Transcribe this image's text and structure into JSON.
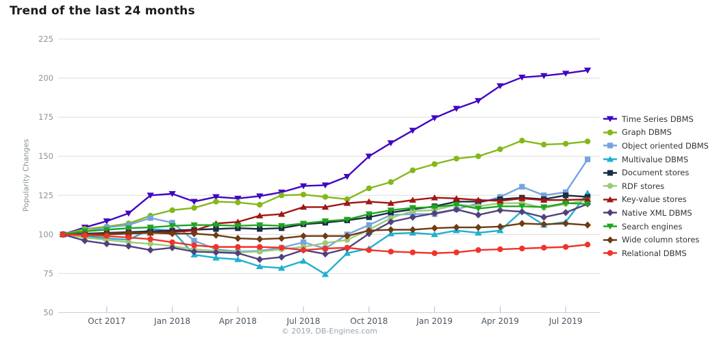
{
  "title": "Trend of the last 24 months",
  "footer": "© 2019, DB-Engines.com",
  "chart_data": {
    "type": "line",
    "title": "Trend of the last 24 months",
    "xlabel": "",
    "ylabel": "Popularity Changes",
    "ylim": [
      50,
      225
    ],
    "yticks": [
      50,
      75,
      100,
      125,
      150,
      175,
      200,
      225
    ],
    "x_count": 25,
    "xtick_labels": [
      "Oct 2017",
      "Jan 2018",
      "Apr 2018",
      "Jul 2018",
      "Oct 2018",
      "Jan 2019",
      "Apr 2019",
      "Jul 2019"
    ],
    "xtick_indices": [
      2,
      5,
      8,
      11,
      14,
      17,
      20,
      23
    ],
    "grid": "horizontal",
    "legend_position": "right",
    "axis_colors": {
      "grid": "#dddddd",
      "baseline": "#c7d0d9",
      "tick": "#b3bdc7",
      "xtick_label": "#4a5560",
      "ytick_label": "#8a949c"
    },
    "series": [
      {
        "name": "Time Series DBMS",
        "color": "#4106c2",
        "marker": "triangle-down",
        "values": [
          100,
          104.5,
          108.5,
          113.5,
          125,
          126,
          121,
          124,
          123,
          124.5,
          127,
          131,
          131.5,
          137,
          150,
          158.5,
          166.5,
          174.5,
          180.5,
          185.5,
          195,
          200.5,
          201.5,
          203,
          205
        ]
      },
      {
        "name": "Graph DBMS",
        "color": "#84b819",
        "marker": "circle",
        "values": [
          100,
          103.5,
          105,
          107,
          112,
          115.5,
          117,
          121,
          120.5,
          119,
          125,
          125.5,
          124,
          122.5,
          129.5,
          133.5,
          141,
          145,
          148.5,
          150,
          154.5,
          160,
          157.5,
          158,
          159.5
        ]
      },
      {
        "name": "Object oriented DBMS",
        "color": "#74a4df",
        "marker": "square",
        "values": [
          100,
          102,
          104.5,
          106,
          110.5,
          107.5,
          96,
          90.5,
          89,
          89.5,
          91.5,
          95,
          91,
          100,
          106,
          112.5,
          113,
          113,
          116,
          120,
          124,
          130.5,
          125,
          127,
          148
        ]
      },
      {
        "name": "Multivalue DBMS",
        "color": "#1fb0cf",
        "marker": "triangle-up",
        "values": [
          100,
          99,
          97.5,
          96.5,
          103.5,
          102.5,
          87,
          85,
          84,
          79.5,
          78.5,
          83,
          74.5,
          88,
          91,
          100.5,
          101,
          100,
          102.5,
          101,
          102.5,
          115,
          106,
          108,
          126.5
        ]
      },
      {
        "name": "Document stores",
        "color": "#1b2c44",
        "marker": "square",
        "values": [
          100,
          100.5,
          101,
          101.5,
          102,
          102.5,
          103,
          103.5,
          104,
          103.5,
          104,
          106.5,
          107.5,
          109,
          111,
          114,
          116,
          118,
          121,
          121,
          122.5,
          123.5,
          122.5,
          125,
          124
        ]
      },
      {
        "name": "RDF stores",
        "color": "#9ccb78",
        "marker": "circle",
        "values": [
          100,
          98,
          96.5,
          95,
          94,
          92.5,
          90.5,
          89.5,
          88.5,
          89,
          90.5,
          92,
          94.5,
          96.5,
          103,
          110.5,
          115,
          115.5,
          119,
          118,
          120,
          120,
          117,
          119.5,
          122
        ]
      },
      {
        "name": "Key-value stores",
        "color": "#a01613",
        "marker": "triangle-up",
        "values": [
          100,
          100,
          100,
          100.5,
          101,
          101.5,
          102.5,
          107,
          108,
          112,
          113,
          117.5,
          117.5,
          120,
          121,
          120,
          122,
          123.5,
          123,
          122,
          121.5,
          123,
          122,
          122,
          122.5
        ]
      },
      {
        "name": "Native XML DBMS",
        "color": "#52407c",
        "marker": "diamond",
        "values": [
          100,
          96,
          94,
          92.5,
          90,
          91.5,
          89,
          88.5,
          88,
          84,
          85.5,
          90,
          87.5,
          91,
          100.5,
          108,
          111,
          113.5,
          116,
          112.5,
          115.5,
          114.5,
          111,
          114,
          119.5
        ]
      },
      {
        "name": "Search engines",
        "color": "#1fa51f",
        "marker": "triangle-down",
        "values": [
          100,
          102,
          103,
          104,
          104.5,
          105.5,
          106,
          106,
          105.5,
          106,
          105.5,
          107,
          108.5,
          109.5,
          113,
          115.5,
          117,
          117.5,
          119,
          116.5,
          118,
          118,
          117.5,
          120,
          119.5
        ]
      },
      {
        "name": "Wide column stores",
        "color": "#6e3d13",
        "marker": "diamond",
        "values": [
          100,
          100,
          100.5,
          101,
          101,
          100.5,
          100.5,
          99.5,
          97.5,
          97,
          97.5,
          99,
          99,
          99,
          102.5,
          103,
          103,
          104,
          104.5,
          104.5,
          105,
          107,
          106.5,
          107,
          106
        ]
      },
      {
        "name": "Relational DBMS",
        "color": "#ef342a",
        "marker": "circle",
        "values": [
          100,
          99.5,
          99,
          98,
          97,
          95,
          93,
          92,
          92,
          92,
          91.5,
          90,
          91,
          91.5,
          90,
          89,
          88.5,
          88,
          88.5,
          90,
          90.5,
          91,
          91.5,
          92,
          93.5
        ]
      }
    ]
  }
}
